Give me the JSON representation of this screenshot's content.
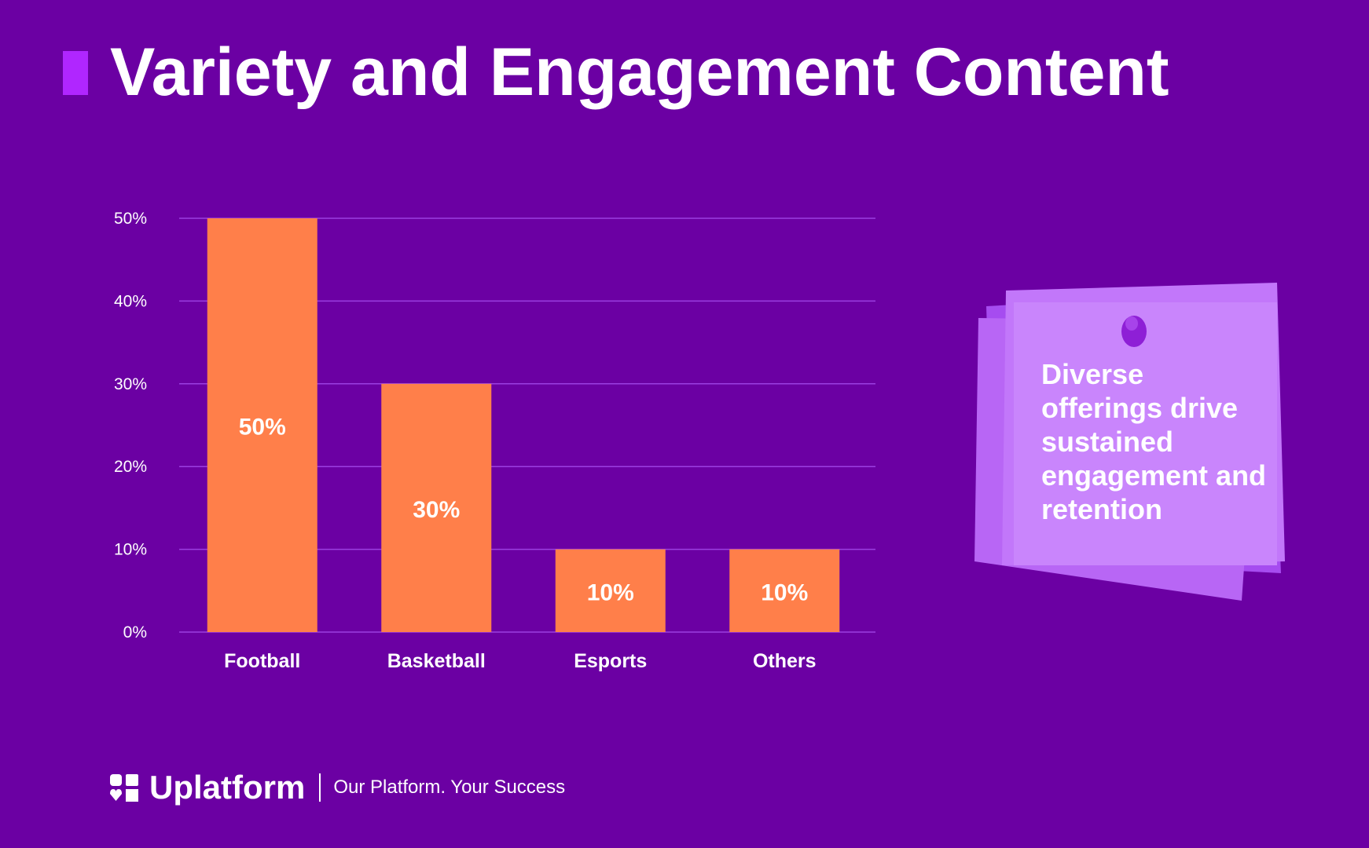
{
  "title": "Variety and Engagement Content",
  "colors": {
    "background": "#6b00a3",
    "accent": "#b026ff",
    "bar": "#ff7f4a",
    "gridline": "#9b3fe0",
    "note": "#c77dff"
  },
  "chart_data": {
    "type": "bar",
    "title": "Variety and Engagement Content",
    "categories": [
      "Football",
      "Basketball",
      "Esports",
      "Others"
    ],
    "values": [
      50,
      30,
      10,
      10
    ],
    "value_labels": [
      "50%",
      "30%",
      "10%",
      "10%"
    ],
    "y_ticks": [
      0,
      10,
      20,
      30,
      40,
      50
    ],
    "y_tick_labels": [
      "0%",
      "10%",
      "20%",
      "30%",
      "40%",
      "50%"
    ],
    "ylim": [
      0,
      50
    ],
    "xlabel": "",
    "ylabel": "",
    "grid": true
  },
  "note": {
    "text": "Diverse offerings drive sustained engagement and retention"
  },
  "footer": {
    "brand": "Uplatform",
    "tagline": "Our Platform. Your Success",
    "logo_icon": "uplatform-logo-icon"
  }
}
